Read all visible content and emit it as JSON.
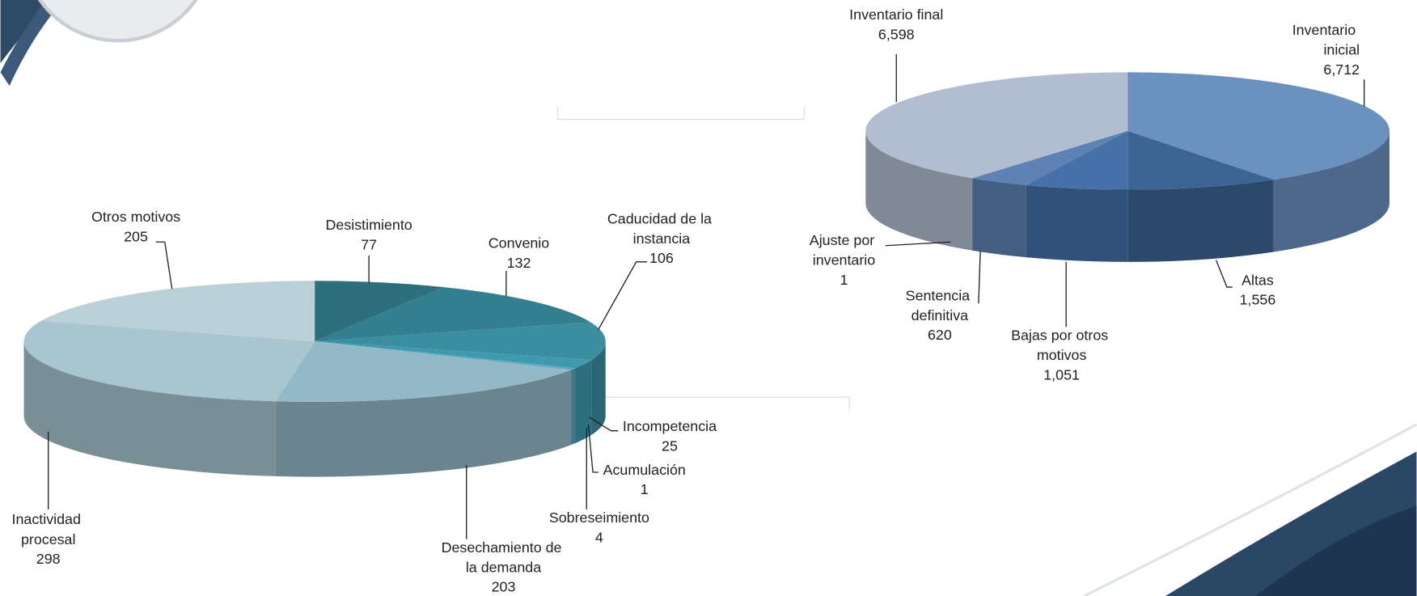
{
  "chart_data": [
    {
      "type": "pie3d",
      "categories": [
        "Desistimiento",
        "Convenio",
        "Caducidad de la instancia",
        "Incompetencia",
        "Acumulación",
        "Sobreseimiento",
        "Desechamiento de la demanda",
        "Inactividad procesal",
        "Otros motivos"
      ],
      "values": [
        77,
        132,
        106,
        25,
        1,
        4,
        203,
        298,
        205
      ],
      "colors": [
        "#2e6f7e",
        "#347f8f",
        "#3a8ea0",
        "#3f9ab0",
        "#4aa0b5",
        "#57a5b8",
        "#93b9c6",
        "#a9c5d0",
        "#bcd0d8"
      ]
    },
    {
      "type": "pie3d",
      "categories": [
        "Inventario inicial",
        "Altas",
        "Bajas por otros motivos",
        "Sentencia definitiva",
        "Ajuste por inventario",
        "Inventario final"
      ],
      "values": [
        6712,
        1556,
        1051,
        620,
        1,
        6598
      ],
      "value_labels": [
        "6,712",
        "1,556",
        "1,051",
        "620",
        "1",
        "6,598"
      ],
      "colors": [
        "#6b91bf",
        "#3d6594",
        "#4571a8",
        "#5f82b4",
        "#6a86b0",
        "#b3bdd1"
      ]
    }
  ]
}
